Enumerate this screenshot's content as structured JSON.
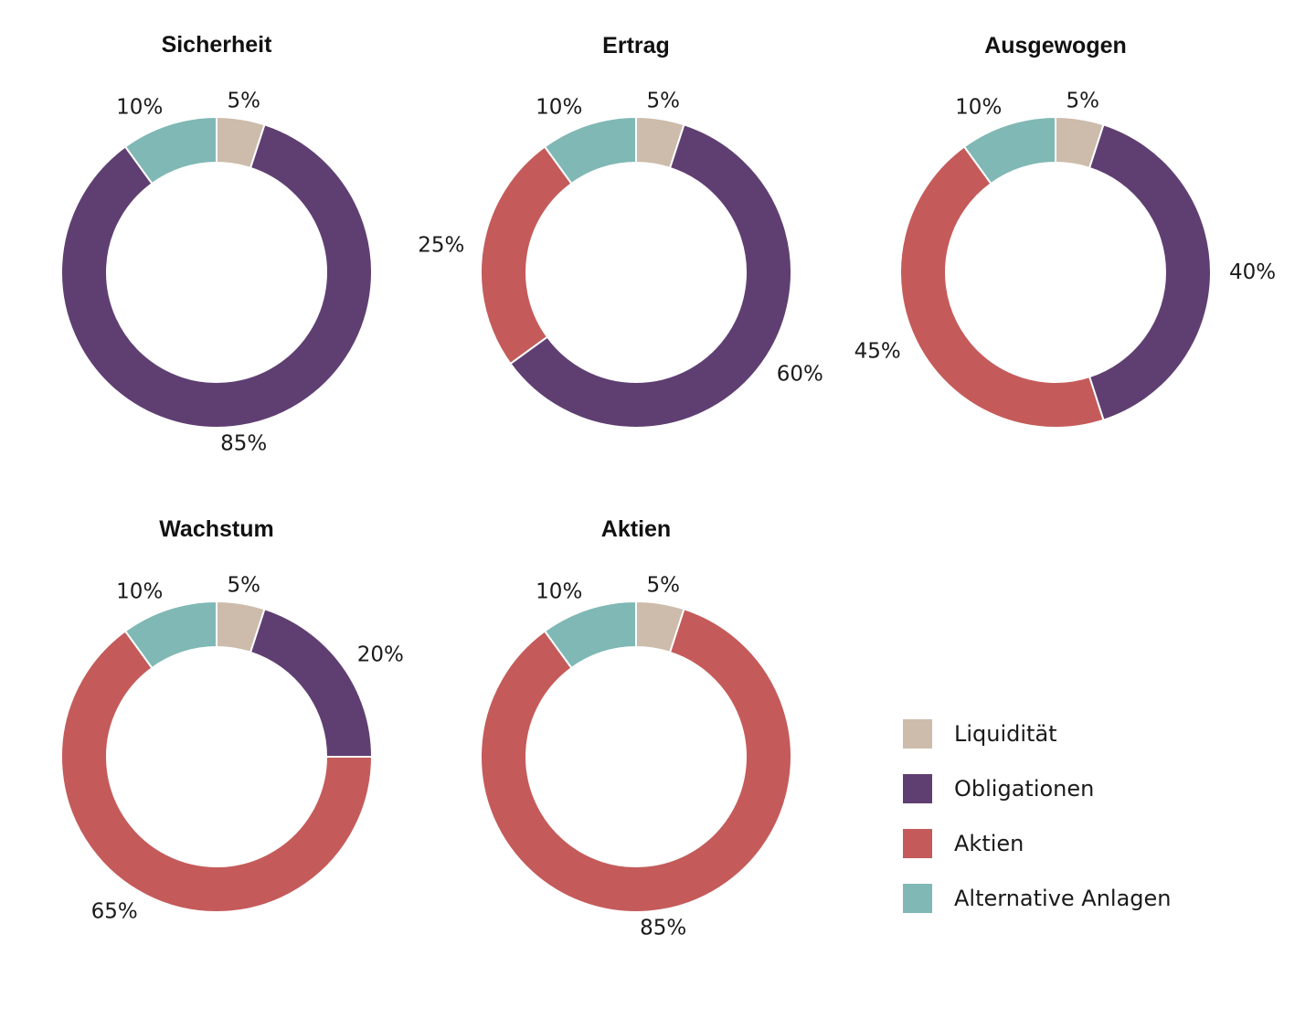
{
  "chart_data": [
    {
      "type": "donut",
      "title": "Sicherheit",
      "slices": [
        {
          "category": "Liquidität",
          "value": 5,
          "label": "5%"
        },
        {
          "category": "Obligationen",
          "value": 85,
          "label": "85%"
        },
        {
          "category": "Alternative Anlagen",
          "value": 10,
          "label": "10%"
        }
      ]
    },
    {
      "type": "donut",
      "title": "Ertrag",
      "slices": [
        {
          "category": "Liquidität",
          "value": 5,
          "label": "5%"
        },
        {
          "category": "Obligationen",
          "value": 60,
          "label": "60%"
        },
        {
          "category": "Aktien",
          "value": 25,
          "label": "25%"
        },
        {
          "category": "Alternative Anlagen",
          "value": 10,
          "label": "10%"
        }
      ]
    },
    {
      "type": "donut",
      "title": "Ausgewogen",
      "slices": [
        {
          "category": "Liquidität",
          "value": 5,
          "label": "5%"
        },
        {
          "category": "Obligationen",
          "value": 40,
          "label": "40%"
        },
        {
          "category": "Aktien",
          "value": 45,
          "label": "45%"
        },
        {
          "category": "Alternative Anlagen",
          "value": 10,
          "label": "10%"
        }
      ]
    },
    {
      "type": "donut",
      "title": "Wachstum",
      "slices": [
        {
          "category": "Liquidität",
          "value": 5,
          "label": "5%"
        },
        {
          "category": "Obligationen",
          "value": 20,
          "label": "20%"
        },
        {
          "category": "Aktien",
          "value": 65,
          "label": "65%"
        },
        {
          "category": "Alternative Anlagen",
          "value": 10,
          "label": "10%"
        }
      ]
    },
    {
      "type": "donut",
      "title": "Aktien",
      "slices": [
        {
          "category": "Liquidität",
          "value": 5,
          "label": "5%"
        },
        {
          "category": "Aktien",
          "value": 85,
          "label": "85%"
        },
        {
          "category": "Alternative Anlagen",
          "value": 10,
          "label": "10%"
        }
      ]
    }
  ],
  "legend": {
    "placement": "bottom-right",
    "items": [
      {
        "label": "Liquidität",
        "color": "#cdbcab"
      },
      {
        "label": "Obligationen",
        "color": "#5f3f72"
      },
      {
        "label": "Aktien",
        "color": "#c45b5a"
      },
      {
        "label": "Alternative Anlagen",
        "color": "#7fb8b4"
      }
    ]
  }
}
